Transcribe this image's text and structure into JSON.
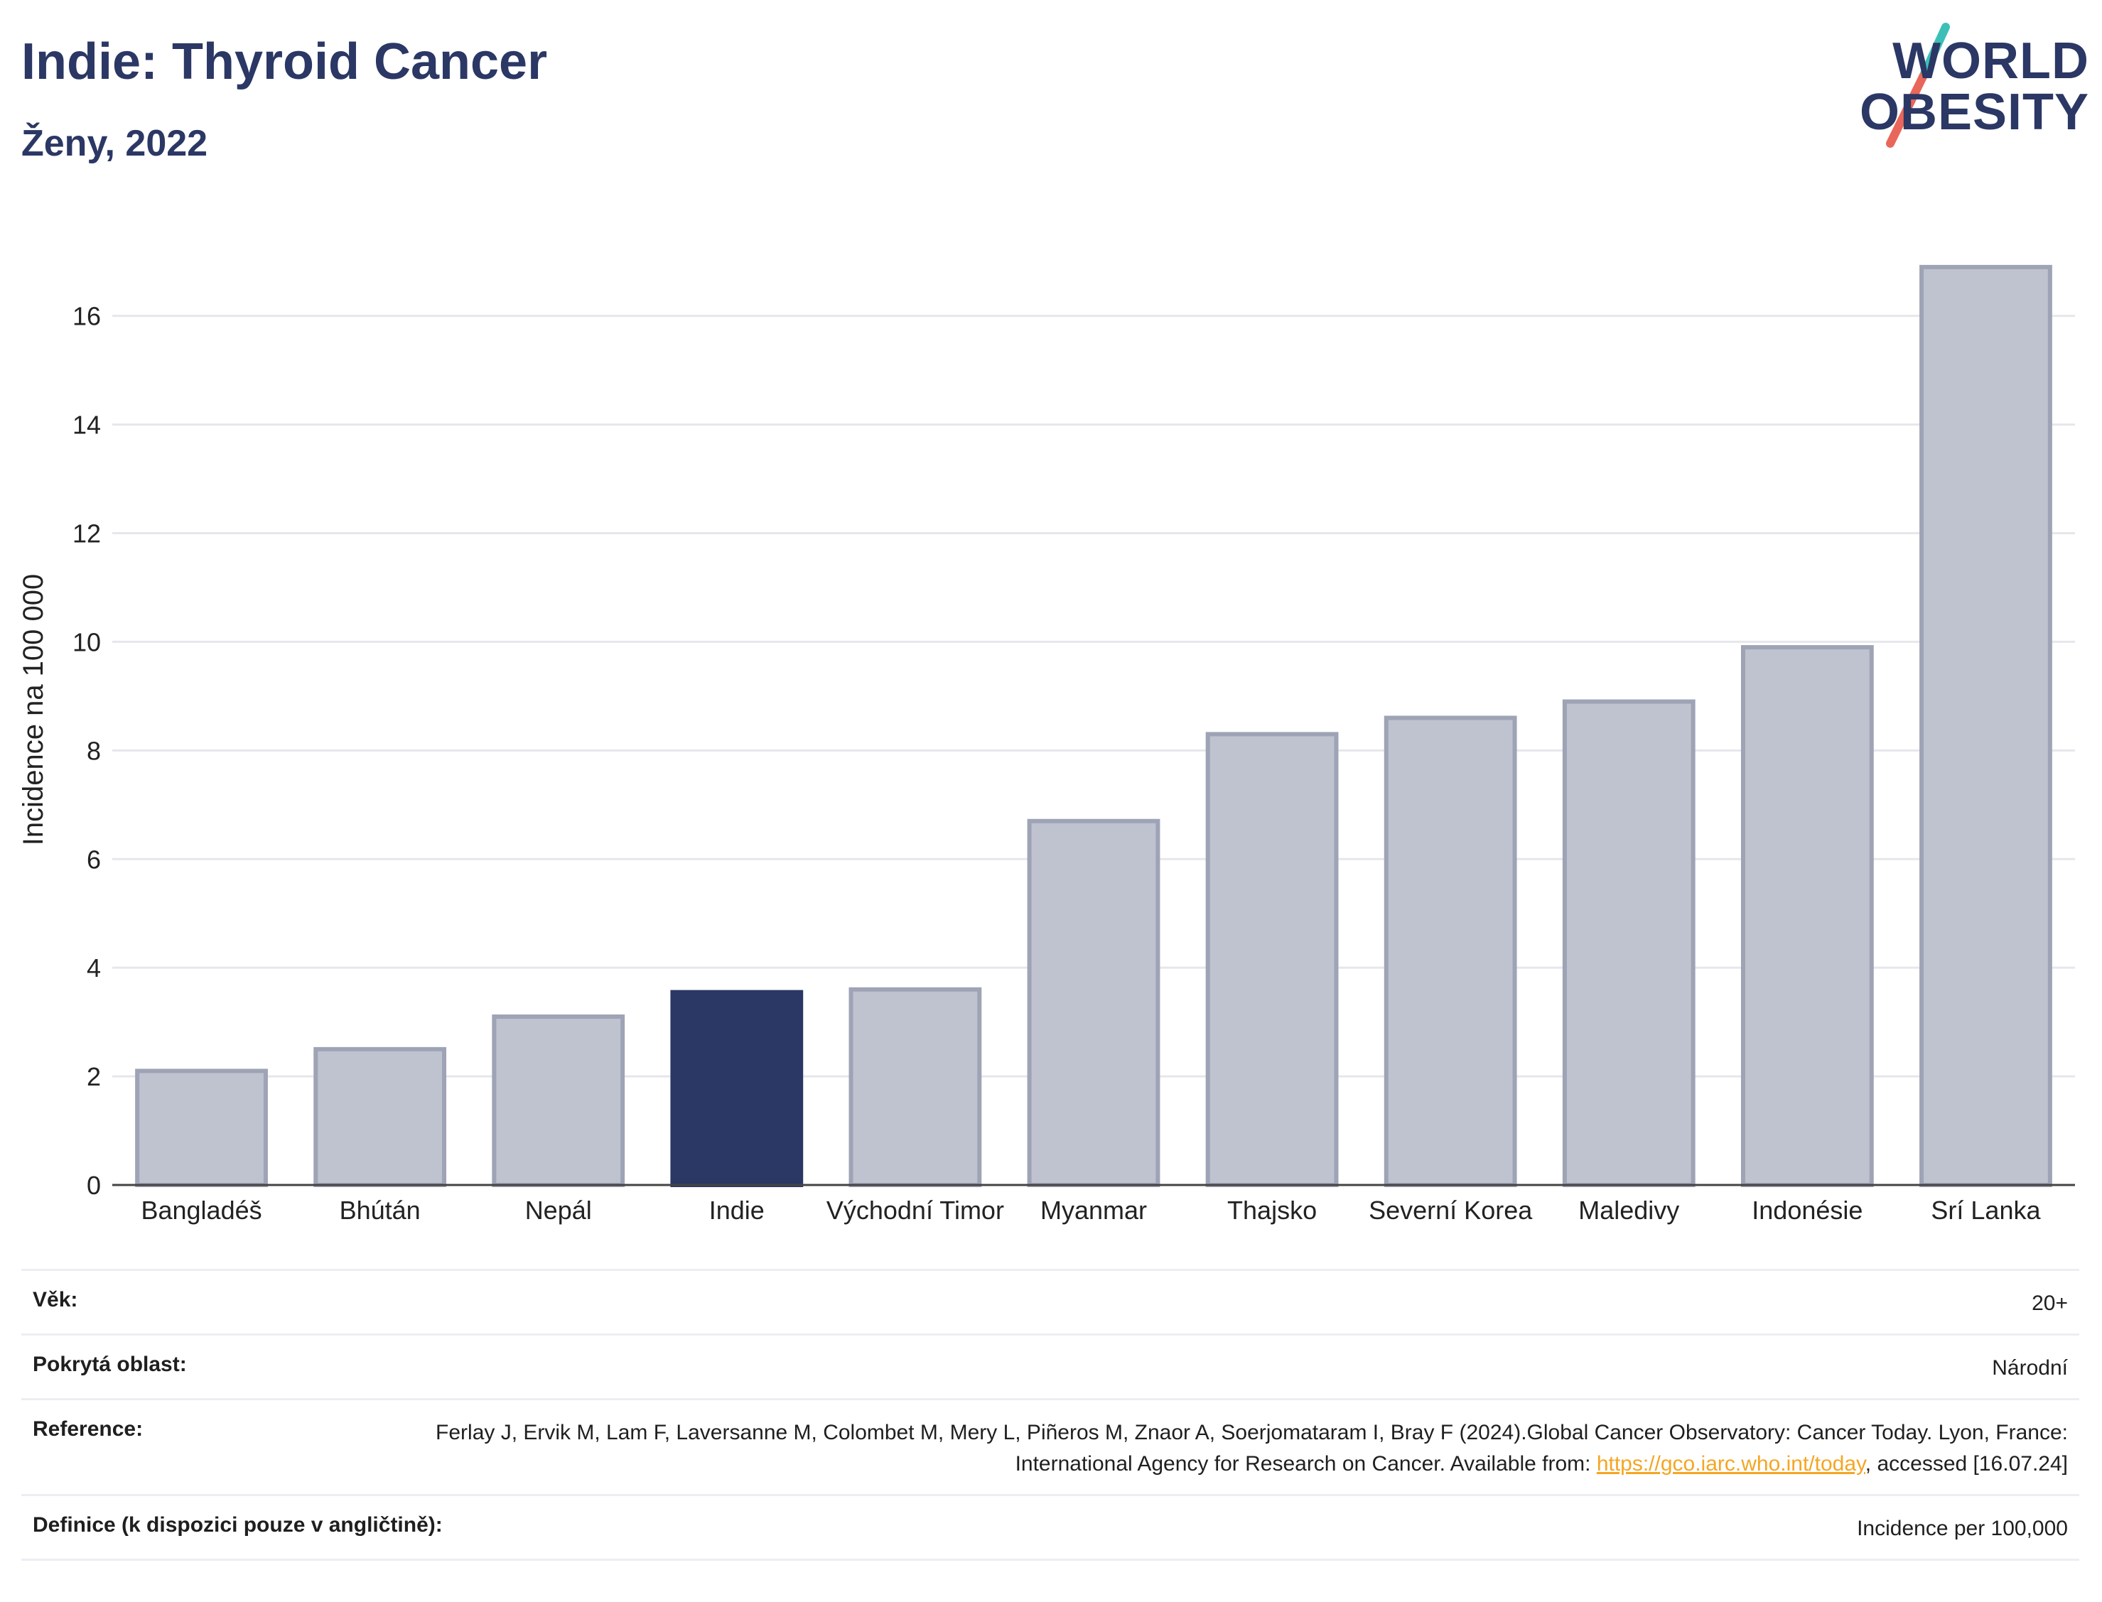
{
  "header": {
    "title": "Indie: Thyroid Cancer",
    "subtitle": "Ženy, 2022"
  },
  "logo": {
    "line1": "WORLD",
    "line2": "OBESITY",
    "slash_colors": [
      "#3dbfb8",
      "#e8675a"
    ]
  },
  "colors": {
    "highlight": "#2b3764",
    "bar": "#bfc3cf",
    "bar_stroke": "#9ea3b5",
    "grid": "#e6e7ec",
    "link": "#f5a623"
  },
  "chart_data": {
    "type": "bar",
    "categories": [
      "Bangladéš",
      "Bhútán",
      "Nepál",
      "Indie",
      "Východní Timor",
      "Myanmar",
      "Thajsko",
      "Severní Korea",
      "Maledivy",
      "Indonésie",
      "Srí Lanka"
    ],
    "values": [
      2.1,
      2.5,
      3.1,
      3.55,
      3.6,
      6.7,
      8.3,
      8.6,
      8.9,
      9.9,
      16.9
    ],
    "highlight": "Indie",
    "title": "Indie: Thyroid Cancer",
    "subtitle": "Ženy, 2022",
    "xlabel": "",
    "ylabel": "Incidence na 100 000",
    "ylim": [
      0,
      17.5
    ],
    "yticks": [
      0,
      2,
      4,
      6,
      8,
      10,
      12,
      14,
      16
    ],
    "grid": true
  },
  "meta": {
    "rows": [
      {
        "label": "Věk:",
        "value": "20+"
      },
      {
        "label": "Pokrytá oblast:",
        "value": "Národní"
      },
      {
        "label": "Reference:",
        "value_pre": "Ferlay J, Ervik M, Lam F, Laversanne M, Colombet M, Mery L, Piñeros M, Znaor A, Soerjomataram I, Bray F (2024).Global Cancer Observatory: Cancer Today. Lyon, France: International Agency for Research on Cancer. Available from: ",
        "link": "https://gco.iarc.who.int/today",
        "value_post": ", accessed [16.07.24]"
      },
      {
        "label": "Definice (k dispozici pouze v angličtině):",
        "value": "Incidence per 100,000"
      }
    ]
  }
}
